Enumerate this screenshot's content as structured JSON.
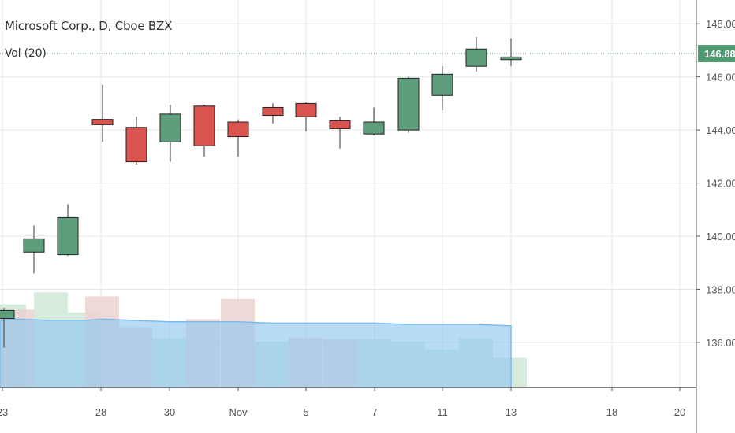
{
  "legend": {
    "title": "Microsoft Corp., D, Cboe BZX",
    "volume_indicator": "Vol (20)"
  },
  "last_price_label": "146.88",
  "colors": {
    "up": "#5e9e7d",
    "down": "#d9534f",
    "grid": "#e6e6e6",
    "last_price": "#4f9a73",
    "volume_ma_fill": "#90c8f0",
    "volume_up": "#cfe8d6",
    "volume_down": "#ecd2cf",
    "axis_text": "#555555"
  },
  "chart_data": {
    "type": "candlestick",
    "ylim": [
      134.9,
      148.6
    ],
    "y_ticks": [
      "148.00",
      "146.00",
      "144.00",
      "142.00",
      "140.00",
      "138.00",
      "136.00"
    ],
    "x_ticks": [
      "23",
      "28",
      "30",
      "Nov",
      "5",
      "7",
      "11",
      "13",
      "18",
      "20"
    ],
    "last_price": 146.88,
    "candles": [
      {
        "date": "Oct 23",
        "open": 136.9,
        "high": 137.3,
        "low": 135.8,
        "close": 137.2
      },
      {
        "date": "Oct 24",
        "open": 139.4,
        "high": 140.4,
        "low": 138.6,
        "close": 139.9
      },
      {
        "date": "Oct 25",
        "open": 139.3,
        "high": 141.2,
        "low": 139.25,
        "close": 140.7
      },
      {
        "date": "Oct 28",
        "open": 144.4,
        "high": 145.7,
        "low": 143.55,
        "close": 144.2
      },
      {
        "date": "Oct 29",
        "open": 144.1,
        "high": 144.5,
        "low": 142.7,
        "close": 142.8
      },
      {
        "date": "Oct 30",
        "open": 143.55,
        "high": 144.95,
        "low": 142.8,
        "close": 144.6
      },
      {
        "date": "Oct 31",
        "open": 144.9,
        "high": 144.95,
        "low": 143.0,
        "close": 143.4
      },
      {
        "date": "Nov 1",
        "open": 144.3,
        "high": 144.4,
        "low": 143.0,
        "close": 143.75
      },
      {
        "date": "Nov 4",
        "open": 144.85,
        "high": 145.0,
        "low": 144.25,
        "close": 144.55
      },
      {
        "date": "Nov 5",
        "open": 145.0,
        "high": 145.05,
        "low": 143.95,
        "close": 144.5
      },
      {
        "date": "Nov 6",
        "open": 144.35,
        "high": 144.5,
        "low": 143.3,
        "close": 144.05
      },
      {
        "date": "Nov 7",
        "open": 143.85,
        "high": 144.85,
        "low": 143.8,
        "close": 144.3
      },
      {
        "date": "Nov 8",
        "open": 144.0,
        "high": 146.0,
        "low": 143.9,
        "close": 145.95
      },
      {
        "date": "Nov 11",
        "open": 145.3,
        "high": 146.4,
        "low": 144.75,
        "close": 146.1
      },
      {
        "date": "Nov 12",
        "open": 146.4,
        "high": 147.5,
        "low": 146.2,
        "close": 147.05
      },
      {
        "date": "Nov 13",
        "open": 146.65,
        "high": 147.45,
        "low": 146.4,
        "close": 146.75
      }
    ],
    "volume": {
      "indicator": "Vol (20)",
      "bars": [
        {
          "date": "Oct 22",
          "value": 0.62,
          "direction": "up"
        },
        {
          "date": "Oct 23",
          "value": 0.58,
          "direction": "down"
        },
        {
          "date": "Oct 24",
          "value": 0.71,
          "direction": "up"
        },
        {
          "date": "Oct 25",
          "value": 0.56,
          "direction": "up"
        },
        {
          "date": "Oct 28",
          "value": 0.68,
          "direction": "down"
        },
        {
          "date": "Oct 29",
          "value": 0.45,
          "direction": "down"
        },
        {
          "date": "Oct 30",
          "value": 0.37,
          "direction": "up"
        },
        {
          "date": "Oct 31",
          "value": 0.51,
          "direction": "down"
        },
        {
          "date": "Nov 1",
          "value": 0.66,
          "direction": "down"
        },
        {
          "date": "Nov 4",
          "value": 0.34,
          "direction": "up"
        },
        {
          "date": "Nov 5",
          "value": 0.37,
          "direction": "down"
        },
        {
          "date": "Nov 6",
          "value": 0.36,
          "direction": "down"
        },
        {
          "date": "Nov 7",
          "value": 0.36,
          "direction": "up"
        },
        {
          "date": "Nov 8",
          "value": 0.34,
          "direction": "up"
        },
        {
          "date": "Nov 11",
          "value": 0.28,
          "direction": "up"
        },
        {
          "date": "Nov 12",
          "value": 0.37,
          "direction": "up"
        },
        {
          "date": "Nov 13",
          "value": 0.22,
          "direction": "up"
        }
      ],
      "moving_average": [
        0.5,
        0.51,
        0.5,
        0.5,
        0.51,
        0.5,
        0.49,
        0.49,
        0.49,
        0.48,
        0.48,
        0.48,
        0.48,
        0.47,
        0.47,
        0.47,
        0.46
      ]
    }
  }
}
